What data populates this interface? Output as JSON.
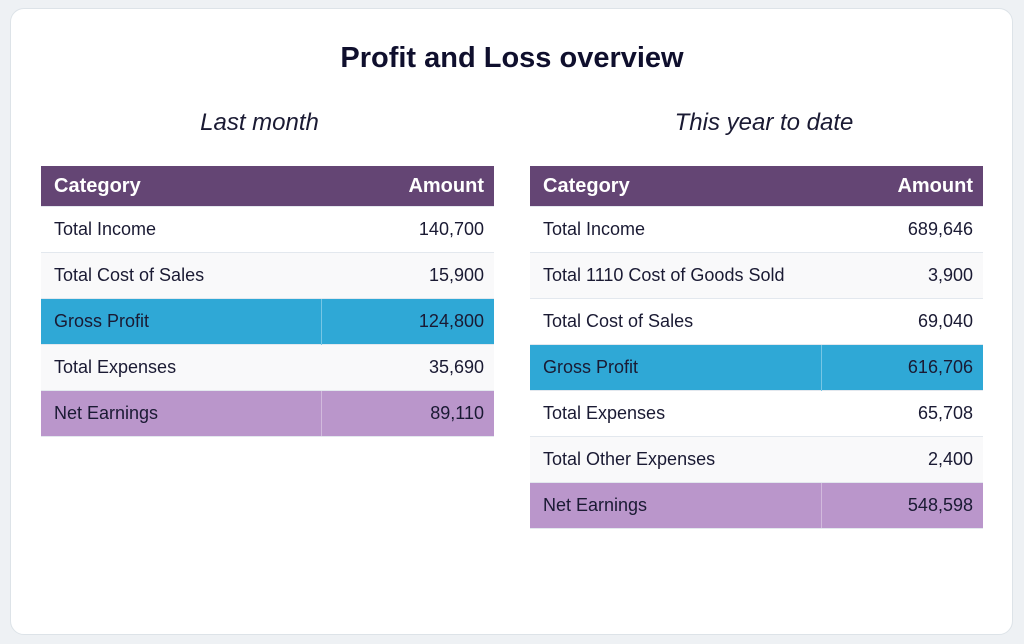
{
  "title": "Profit and Loss overview",
  "colors": {
    "header": "#644574",
    "gross_profit": "#2fa8d6",
    "net_earnings": "#ba96cb"
  },
  "last_month": {
    "subtitle": "Last month",
    "headers": [
      "Category",
      "Amount"
    ],
    "rows": [
      {
        "category": "Total Income",
        "amount": "140,700"
      },
      {
        "category": "Total Cost of Sales",
        "amount": "15,900"
      },
      {
        "category": "Gross Profit",
        "amount": "124,800"
      },
      {
        "category": "Total Expenses",
        "amount": "35,690"
      },
      {
        "category": "Net Earnings",
        "amount": "89,110"
      }
    ]
  },
  "ytd": {
    "subtitle": "This year to date",
    "headers": [
      "Category",
      "Amount"
    ],
    "rows": [
      {
        "category": "Total Income",
        "amount": "689,646"
      },
      {
        "category": "Total 1110 Cost of Goods Sold",
        "amount": "3,900"
      },
      {
        "category": "Total Cost of Sales",
        "amount": "69,040"
      },
      {
        "category": "Gross Profit",
        "amount": "616,706"
      },
      {
        "category": "Total Expenses",
        "amount": "65,708"
      },
      {
        "category": "Total Other Expenses",
        "amount": "2,400"
      },
      {
        "category": "Net Earnings",
        "amount": "548,598"
      }
    ]
  }
}
